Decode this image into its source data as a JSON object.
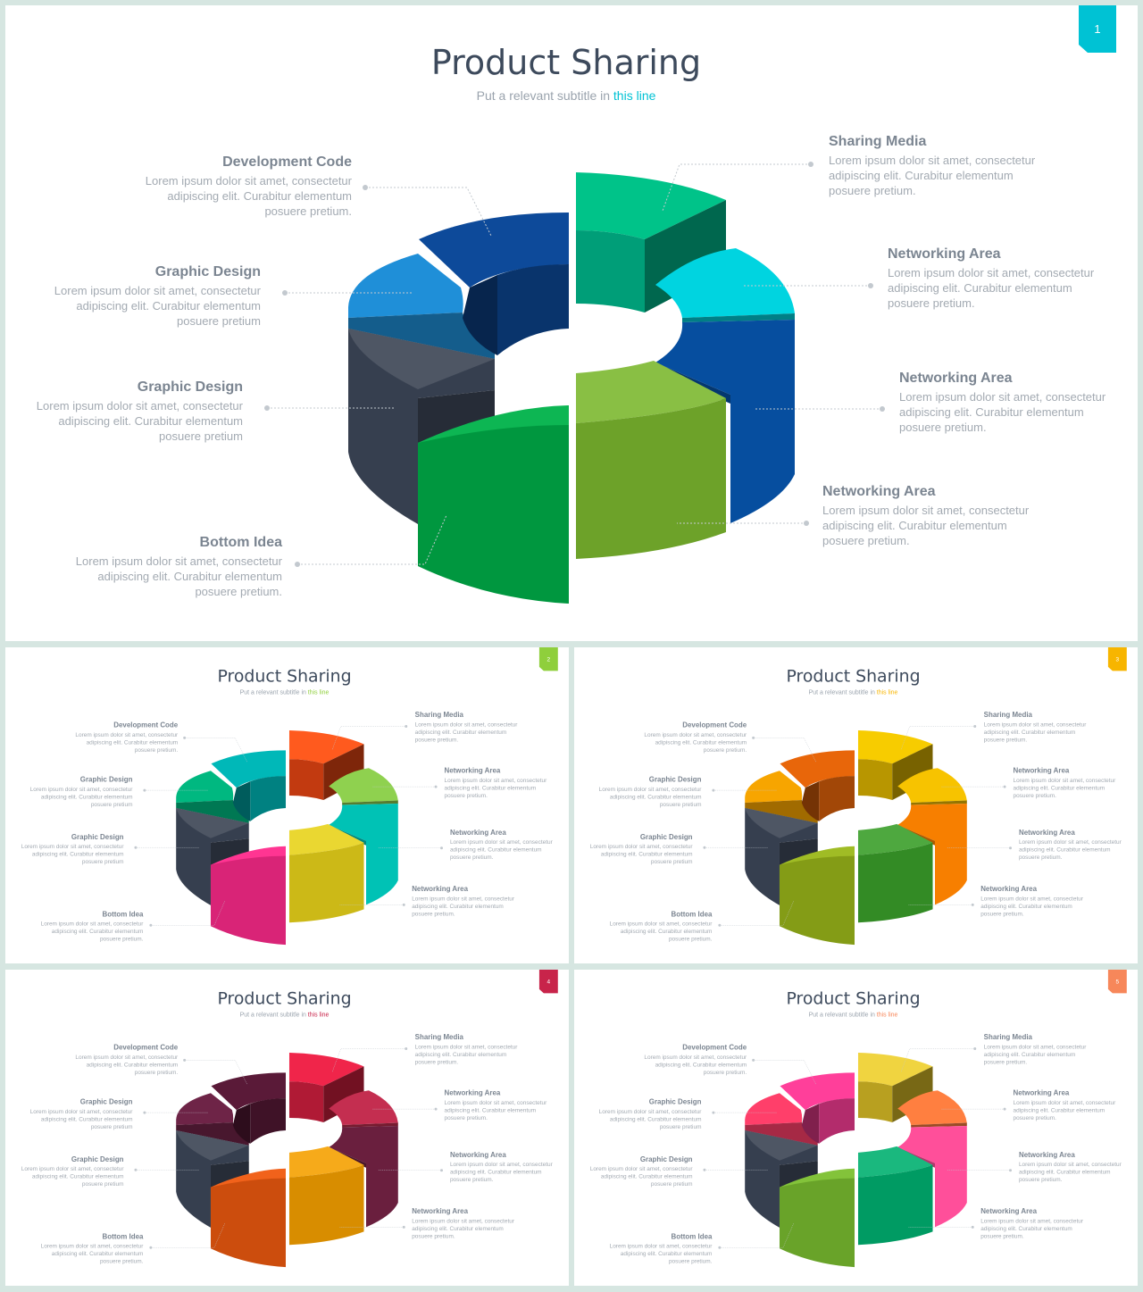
{
  "slides": [
    {
      "id": "main",
      "title": "Product Sharing",
      "subtitle_prefix": "Put a relevant subtitle in ",
      "subtitle_highlight": "this line",
      "page_number": "1",
      "accent": "#00c2d4",
      "segment_colors": {
        "teal_top": "#00c389",
        "teal_mid": "#009e78",
        "cyan": "#00d4e0",
        "blue_right": "#064e9f",
        "lime": "#7cb82f",
        "green": "#00b24a",
        "dark": "#363f4f",
        "lightblue": "#1f8fd8",
        "darkblue": "#0d4a9a"
      }
    },
    {
      "id": "s2",
      "title": "Product Sharing",
      "subtitle_prefix": "Put a relevant subtitle in ",
      "subtitle_highlight": "this line",
      "page_number": "2",
      "accent": "#8fcf3c",
      "segment_colors": {
        "teal_top": "#ff5a1e",
        "teal_mid": "#c23a10",
        "cyan": "#8fd14f",
        "blue_right": "#00c2b5",
        "lime": "#e8d21a",
        "green": "#ff2a8c",
        "dark": "#363f4f",
        "lightblue": "#00b880",
        "darkblue": "#00b8b8"
      }
    },
    {
      "id": "s3",
      "title": "Product Sharing",
      "subtitle_prefix": "Put a relevant subtitle in ",
      "subtitle_highlight": "this line",
      "page_number": "3",
      "accent": "#f7b500",
      "segment_colors": {
        "teal_top": "#f7cc00",
        "teal_mid": "#b89600",
        "cyan": "#f7c300",
        "blue_right": "#f77f00",
        "lime": "#3a9e2a",
        "green": "#9bb81a",
        "dark": "#363f4f",
        "lightblue": "#f7a500",
        "darkblue": "#e8660a"
      }
    },
    {
      "id": "s4",
      "title": "Product Sharing",
      "subtitle_prefix": "Put a relevant subtitle in ",
      "subtitle_highlight": "this line",
      "page_number": "4",
      "accent": "#c8244a",
      "segment_colors": {
        "teal_top": "#f0254a",
        "teal_mid": "#b01a35",
        "cyan": "#c42e50",
        "blue_right": "#6a1f3e",
        "lime": "#f5a000",
        "green": "#f05a0f",
        "dark": "#363f4f",
        "lightblue": "#6e2447",
        "darkblue": "#5a1a38"
      }
    },
    {
      "id": "s5",
      "title": "Product Sharing",
      "subtitle_prefix": "Put a relevant subtitle in ",
      "subtitle_highlight": "this line",
      "page_number": "5",
      "accent": "#f7875a",
      "segment_colors": {
        "teal_top": "#f0d440",
        "teal_mid": "#b8a020",
        "cyan": "#ff7f40",
        "blue_right": "#ff4f9a",
        "lime": "#00b070",
        "green": "#7cc030",
        "dark": "#363f4f",
        "lightblue": "#ff3f6a",
        "darkblue": "#ff3f9a"
      }
    }
  ],
  "labels": [
    {
      "key": "dev",
      "heading": "Development Code",
      "lines": [
        "Lorem ipsum dolor sit amet, consectetur",
        "adipiscing elit. Curabitur elementum",
        "posuere pretium."
      ]
    },
    {
      "key": "gd1",
      "heading": "Graphic Design",
      "lines": [
        "Lorem ipsum dolor sit amet, consectetur",
        "adipiscing elit. Curabitur elementum",
        "posuere pretium"
      ]
    },
    {
      "key": "gd2",
      "heading": "Graphic Design",
      "lines": [
        "Lorem ipsum dolor sit amet, consectetur",
        "adipiscing elit. Curabitur elementum",
        "posuere pretium"
      ]
    },
    {
      "key": "bottom",
      "heading": "Bottom Idea",
      "lines": [
        "Lorem ipsum dolor sit amet, consectetur",
        "adipiscing elit. Curabitur elementum",
        "posuere pretium."
      ]
    },
    {
      "key": "share",
      "heading": "Sharing Media",
      "lines": [
        "Lorem ipsum dolor sit amet, consectetur",
        "adipiscing elit. Curabitur elementum",
        "posuere pretium."
      ]
    },
    {
      "key": "net1",
      "heading": "Networking Area",
      "lines": [
        "Lorem ipsum dolor sit amet, consectetur",
        "adipiscing elit. Curabitur elementum",
        "posuere pretium."
      ]
    },
    {
      "key": "net2",
      "heading": "Networking Area",
      "lines": [
        "Lorem ipsum dolor sit amet, consectetur",
        "adipiscing elit. Curabitur elementum",
        "posuere pretium."
      ]
    },
    {
      "key": "net3",
      "heading": "Networking Area",
      "lines": [
        "Lorem ipsum dolor sit amet, consectetur",
        "adipiscing elit. Curabitur elementum",
        "posuere pretium."
      ]
    }
  ]
}
